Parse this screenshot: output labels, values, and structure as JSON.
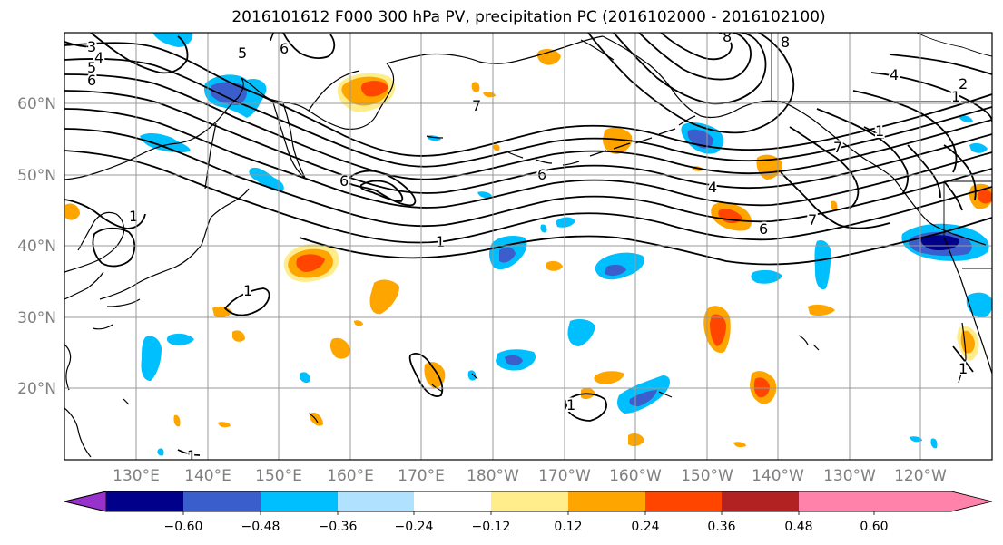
{
  "title": "2016101612 F000 300 hPa PV, precipitation PC (2016102000 - 2016102100)",
  "map": {
    "lat_labels": [
      "60°N",
      "50°N",
      "40°N",
      "30°N",
      "20°N"
    ],
    "lon_labels": [
      "130°E",
      "140°E",
      "150°E",
      "160°E",
      "170°E",
      "180°W",
      "170°W",
      "160°W",
      "150°W",
      "140°W",
      "130°W",
      "120°W"
    ],
    "contour_labels": [
      "3",
      "4",
      "5",
      "6",
      "5",
      "6",
      "7",
      "6",
      "6",
      "1",
      "1",
      "1",
      "7",
      "8",
      "8",
      "4",
      "1",
      "2",
      "7",
      "6",
      "4",
      "1",
      "1",
      "1",
      "1",
      "7"
    ]
  },
  "colorbar": {
    "ticks": [
      "−0.60",
      "−0.48",
      "−0.36",
      "−0.24",
      "−0.12",
      "0.12",
      "0.24",
      "0.36",
      "0.48",
      "0.60"
    ],
    "colors": [
      "#9932cc",
      "#00008b",
      "#3a5fcd",
      "#00bfff",
      "#b0e2ff",
      "#ffffff",
      "#ffec8b",
      "#ffa500",
      "#ff4500",
      "#b22222",
      "#ff82ab"
    ]
  }
}
